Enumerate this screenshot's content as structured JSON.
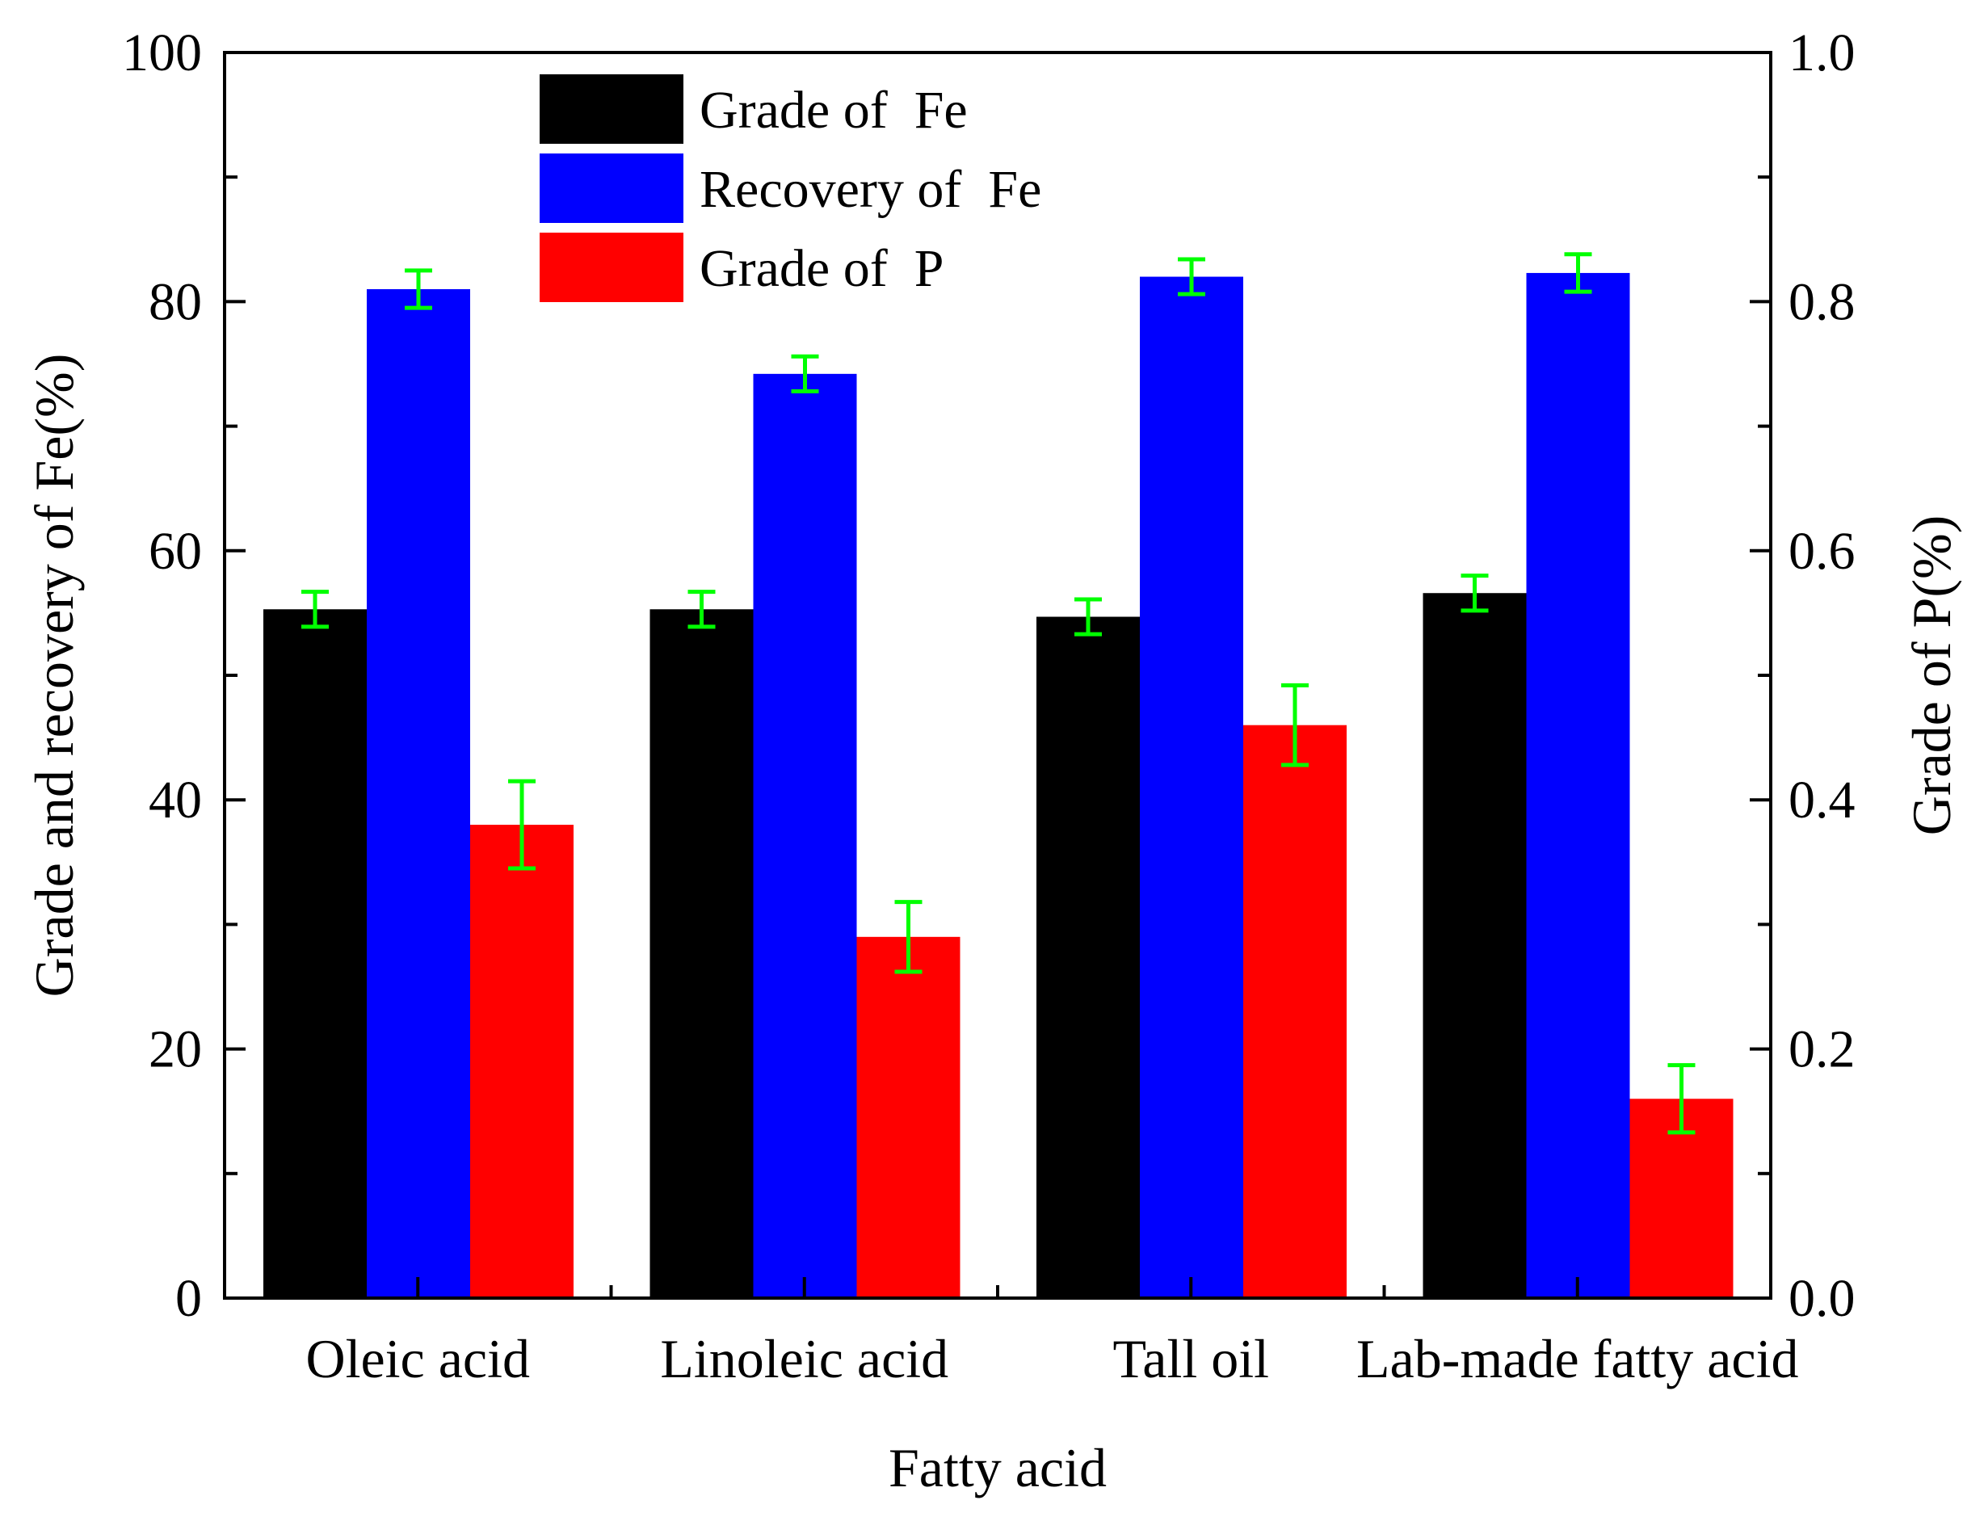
{
  "chart_data": {
    "type": "bar",
    "title": "",
    "xlabel": "Fatty acid",
    "ylabel_left": "Grade and recovery of  Fe(%)",
    "ylabel_right": "Grade of  P(%)",
    "ylim_left": [
      0,
      100
    ],
    "ylim_right": [
      0.0,
      1.0
    ],
    "yticks_left": [
      "0",
      "20",
      "40",
      "60",
      "80",
      "100"
    ],
    "yticks_right": [
      "0.0",
      "0.2",
      "0.4",
      "0.6",
      "0.8",
      "1.0"
    ],
    "categories": [
      "Oleic acid",
      "Linoleic acid",
      "Tall oil",
      "Lab-made fatty acid"
    ],
    "series": [
      {
        "name": "Grade of  Fe",
        "axis": "left",
        "color": "#000000",
        "values": [
          55.3,
          55.3,
          54.7,
          56.6
        ],
        "errors": [
          1.4,
          1.4,
          1.4,
          1.4
        ]
      },
      {
        "name": "Recovery of  Fe",
        "axis": "left",
        "color": "#0000ff",
        "values": [
          81.0,
          74.2,
          82.0,
          82.3
        ],
        "errors": [
          1.5,
          1.4,
          1.4,
          1.5
        ]
      },
      {
        "name": "Grade of  P",
        "axis": "right",
        "color": "#ff0000",
        "values": [
          0.38,
          0.29,
          0.46,
          0.16
        ],
        "errors": [
          0.035,
          0.028,
          0.032,
          0.027
        ]
      }
    ],
    "error_bar_color": "#00ff00",
    "legend_position": "top-center",
    "grid": false
  }
}
